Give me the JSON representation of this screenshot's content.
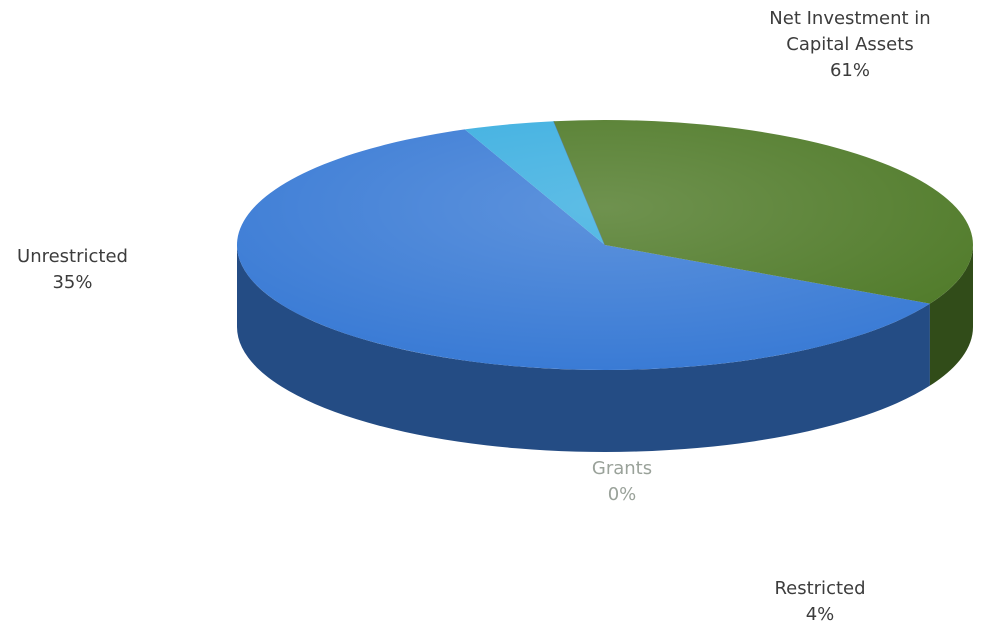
{
  "chart_data": {
    "type": "pie",
    "title": "",
    "style": "3d",
    "slices": [
      {
        "label": "Net Investment in Capital Assets",
        "label_lines": [
          "Net Investment in",
          "Capital Assets"
        ],
        "value": 61,
        "value_label": "61%",
        "color": "#3a7bd5"
      },
      {
        "label": "Restricted",
        "label_lines": [
          "Restricted"
        ],
        "value": 4,
        "value_label": "4%",
        "color": "#3aaee0"
      },
      {
        "label": "Grants",
        "label_lines": [
          "Grants"
        ],
        "value": 0,
        "value_label": "0%",
        "color": "#5b8fb0"
      },
      {
        "label": "Unrestricted",
        "label_lines": [
          "Unrestricted"
        ],
        "value": 35,
        "value_label": "35%",
        "color": "#4f7a28"
      }
    ]
  }
}
